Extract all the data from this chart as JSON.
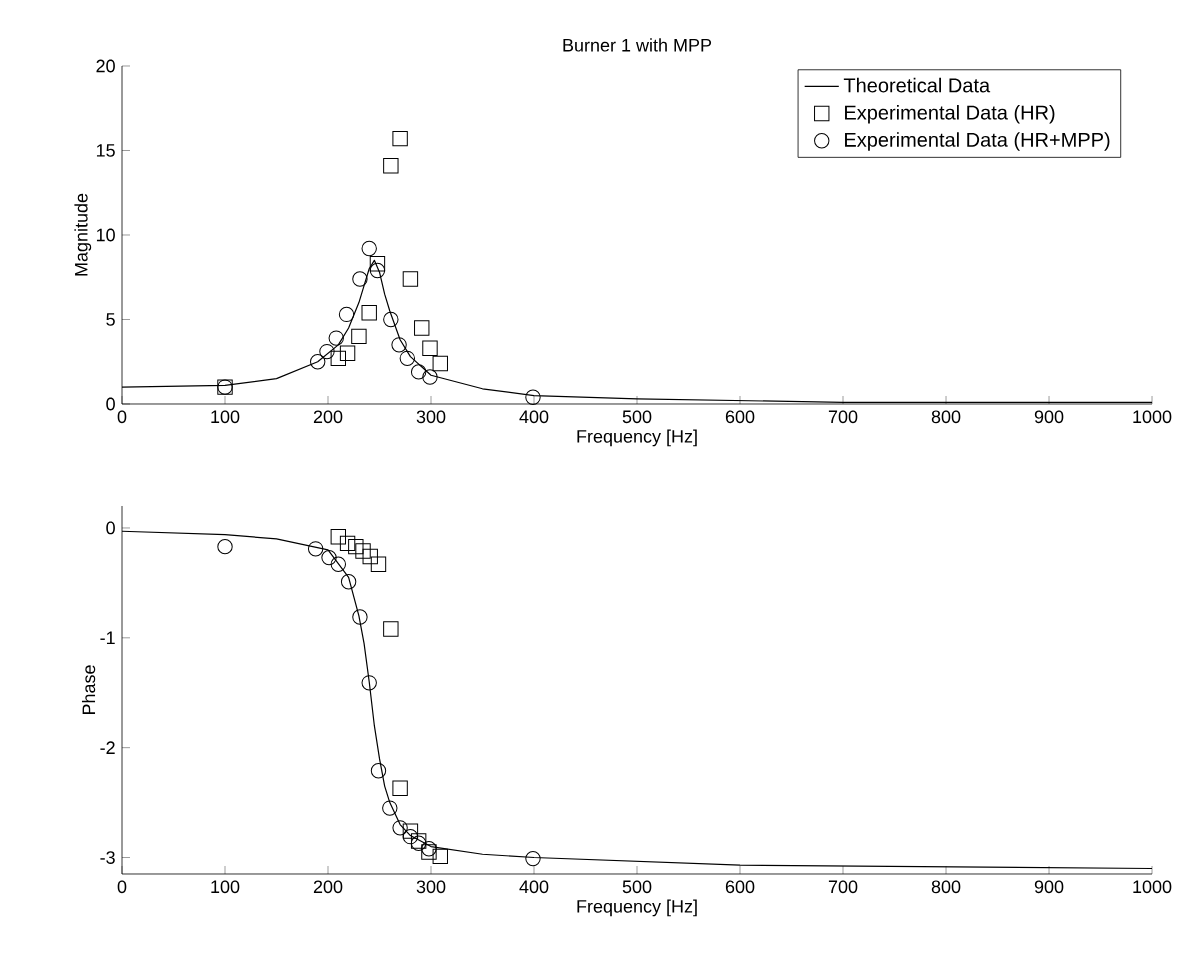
{
  "chart_data": [
    {
      "type": "scatter",
      "title": "Burner 1 with MPP",
      "xlabel": "Frequency [Hz]",
      "ylabel": "Magnitude",
      "xlim": [
        0,
        1000
      ],
      "xticks": [
        0,
        100,
        200,
        300,
        400,
        500,
        600,
        700,
        800,
        900,
        1000
      ],
      "ylim": [
        0,
        20
      ],
      "yticks": [
        0,
        5,
        10,
        15,
        20
      ],
      "legend": "top right",
      "grid": false,
      "series": [
        {
          "name": "Theoretical Data",
          "type": "line",
          "marker": "none",
          "line_style": "solid",
          "color": "#000000",
          "x": [
            0,
            100,
            150,
            190,
            210,
            220,
            230,
            235,
            240,
            245,
            250,
            255,
            260,
            270,
            280,
            300,
            350,
            400,
            500,
            700,
            1000
          ],
          "values": [
            1.0,
            1.1,
            1.5,
            2.5,
            3.5,
            4.5,
            6.0,
            7.0,
            8.0,
            8.5,
            7.8,
            6.5,
            5.5,
            3.8,
            2.8,
            1.7,
            0.9,
            0.5,
            0.3,
            0.1,
            0.1
          ]
        },
        {
          "name": "Experimental Data (HR)",
          "marker": "square",
          "color": "#000000",
          "x": [
            100,
            210,
            219,
            230,
            240,
            248,
            261,
            270,
            280,
            291,
            299,
            309
          ],
          "values": [
            1.0,
            2.7,
            3.0,
            4.0,
            5.4,
            8.3,
            14.1,
            15.7,
            7.4,
            4.5,
            3.3,
            2.4
          ]
        },
        {
          "name": "Experimental Data (HR+MPP)",
          "marker": "circle",
          "color": "#000000",
          "x": [
            100,
            190,
            199,
            208,
            218,
            231,
            240,
            248,
            261,
            269,
            277,
            288,
            299,
            399
          ],
          "values": [
            1.0,
            2.5,
            3.1,
            3.9,
            5.3,
            7.4,
            9.2,
            7.9,
            5.0,
            3.5,
            2.7,
            1.9,
            1.6,
            0.4
          ]
        }
      ]
    },
    {
      "type": "scatter",
      "xlabel": "Frequency [Hz]",
      "ylabel": "Phase",
      "xlim": [
        0,
        1000
      ],
      "xticks": [
        0,
        100,
        200,
        300,
        400,
        500,
        600,
        700,
        800,
        900,
        1000
      ],
      "ylim": [
        -3.15,
        0.2
      ],
      "yticks": [
        -3,
        -2,
        -1,
        0
      ],
      "grid": false,
      "series": [
        {
          "type": "line",
          "marker": "none",
          "line_style": "solid",
          "color": "#000000",
          "x": [
            0,
            100,
            150,
            200,
            220,
            230,
            235,
            240,
            245,
            250,
            255,
            260,
            270,
            280,
            300,
            350,
            400,
            600,
            1000
          ],
          "values": [
            -0.03,
            -0.06,
            -0.1,
            -0.2,
            -0.45,
            -0.8,
            -1.05,
            -1.4,
            -1.8,
            -2.1,
            -2.35,
            -2.5,
            -2.7,
            -2.8,
            -2.9,
            -2.97,
            -3.0,
            -3.07,
            -3.1
          ]
        },
        {
          "marker": "square",
          "color": "#000000",
          "x": [
            210,
            219,
            227,
            234,
            241,
            249,
            261,
            270,
            280,
            288,
            298,
            309
          ],
          "values": [
            -0.08,
            -0.14,
            -0.17,
            -0.21,
            -0.26,
            -0.33,
            -0.92,
            -2.37,
            -2.76,
            -2.85,
            -2.95,
            -2.99
          ]
        },
        {
          "marker": "circle",
          "color": "#000000",
          "x": [
            100,
            188,
            201,
            210,
            220,
            231,
            240,
            249,
            260,
            270,
            280,
            288,
            298,
            399
          ],
          "values": [
            -0.17,
            -0.19,
            -0.27,
            -0.33,
            -0.49,
            -0.81,
            -1.41,
            -2.21,
            -2.55,
            -2.73,
            -2.81,
            -2.87,
            -2.92,
            -3.01
          ]
        }
      ]
    }
  ]
}
